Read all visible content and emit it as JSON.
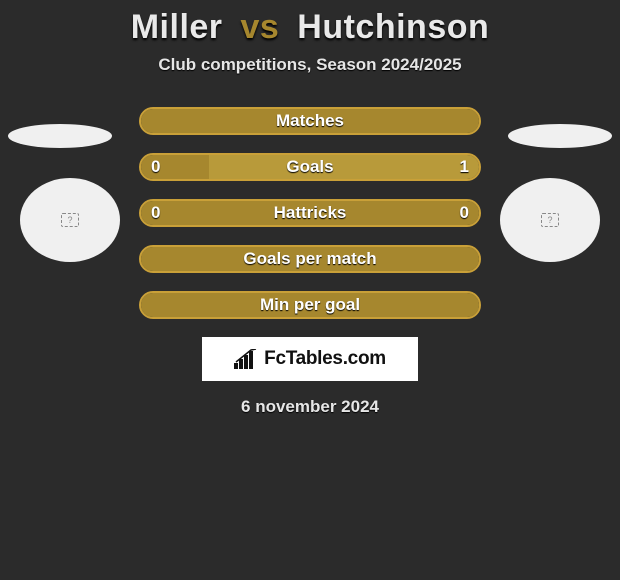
{
  "header": {
    "player1": "Miller",
    "vs": "vs",
    "player2": "Hutchinson",
    "subtitle": "Club competitions, Season 2024/2025"
  },
  "colors": {
    "accent": "#a6872e",
    "accent_dark": "#8f7526",
    "pill_border": "#c9a038",
    "fill_a": "#a6872e",
    "fill_b": "#b89a3a",
    "text": "#ffffff",
    "bg": "#2b2b2b"
  },
  "rows": [
    {
      "key": "matches",
      "name": "Matches",
      "left": null,
      "right": null,
      "left_pct": 100,
      "right_pct": 0,
      "left_color": "#a6872e",
      "right_color": "#b89a3a"
    },
    {
      "key": "goals",
      "name": "Goals",
      "left": "0",
      "right": "1",
      "left_pct": 20,
      "right_pct": 80,
      "left_color": "#a6872e",
      "right_color": "#b89a3a"
    },
    {
      "key": "hattricks",
      "name": "Hattricks",
      "left": "0",
      "right": "0",
      "left_pct": 100,
      "right_pct": 0,
      "left_color": "#a6872e",
      "right_color": "#b89a3a"
    },
    {
      "key": "gpm",
      "name": "Goals per match",
      "left": null,
      "right": null,
      "left_pct": 100,
      "right_pct": 0,
      "left_color": "#a6872e",
      "right_color": "#b89a3a"
    },
    {
      "key": "mpg",
      "name": "Min per goal",
      "left": null,
      "right": null,
      "left_pct": 100,
      "right_pct": 0,
      "left_color": "#a6872e",
      "right_color": "#b89a3a"
    }
  ],
  "branding": {
    "site": "FcTables.com"
  },
  "footer": {
    "date": "6 november 2024"
  }
}
